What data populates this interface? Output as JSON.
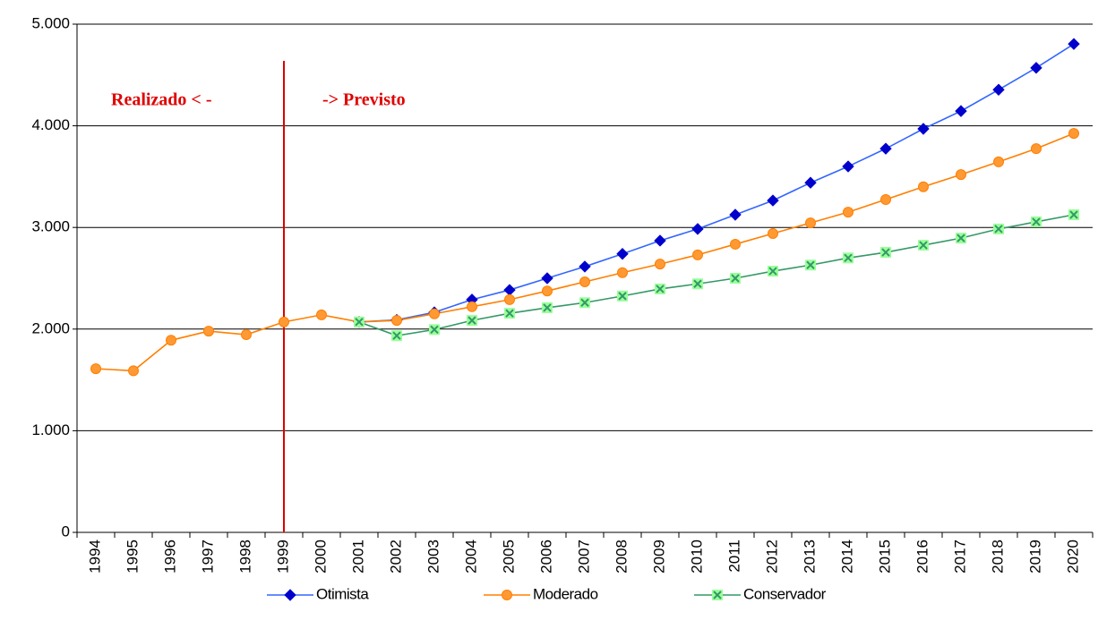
{
  "chart_data": {
    "type": "line",
    "categories": [
      "1994",
      "1995",
      "1996",
      "1997",
      "1998",
      "1999",
      "2000",
      "2001",
      "2002",
      "2003",
      "2004",
      "2005",
      "2006",
      "2007",
      "2008",
      "2009",
      "2010",
      "2011",
      "2012",
      "2013",
      "2014",
      "2015",
      "2016",
      "2017",
      "2018",
      "2019",
      "2020"
    ],
    "series": [
      {
        "name": "Otimista",
        "color": "#3366ff",
        "marker": "diamond",
        "marker_color": "#0000cc",
        "values": [
          null,
          null,
          null,
          null,
          null,
          null,
          null,
          2070,
          2090,
          2165,
          2290,
          2385,
          2500,
          2615,
          2740,
          2870,
          2985,
          3125,
          3265,
          3440,
          3600,
          3775,
          3970,
          4145,
          4355,
          4570,
          4805
        ]
      },
      {
        "name": "Moderado",
        "color": "#ff7f00",
        "marker": "circle",
        "marker_color": "#ff9933",
        "values": [
          1610,
          1590,
          1890,
          1980,
          1945,
          2070,
          2140,
          2070,
          2085,
          2150,
          2220,
          2290,
          2375,
          2465,
          2555,
          2640,
          2730,
          2835,
          2940,
          3045,
          3150,
          3275,
          3400,
          3520,
          3645,
          3775,
          3925
        ]
      },
      {
        "name": "Conservador",
        "color": "#339966",
        "marker": "x",
        "marker_color": "#99ff99",
        "values": [
          null,
          null,
          null,
          null,
          null,
          null,
          null,
          2070,
          1935,
          1995,
          2085,
          2155,
          2210,
          2260,
          2325,
          2395,
          2445,
          2500,
          2570,
          2630,
          2700,
          2755,
          2825,
          2895,
          2985,
          3055,
          3125
        ]
      }
    ],
    "ylim": [
      0,
      5000
    ],
    "yticks": [
      {
        "value": 0,
        "label": "0"
      },
      {
        "value": 1000,
        "label": "1.000"
      },
      {
        "value": 2000,
        "label": "2.000"
      },
      {
        "value": 3000,
        "label": "3.000"
      },
      {
        "value": 4000,
        "label": "4.000"
      },
      {
        "value": 5000,
        "label": "5.000"
      }
    ],
    "grid": true,
    "legend": "bottom",
    "divider_category": "1999",
    "divider_color": "#e00000",
    "annotations": [
      "Realizado < -",
      "-> Previsto"
    ]
  }
}
